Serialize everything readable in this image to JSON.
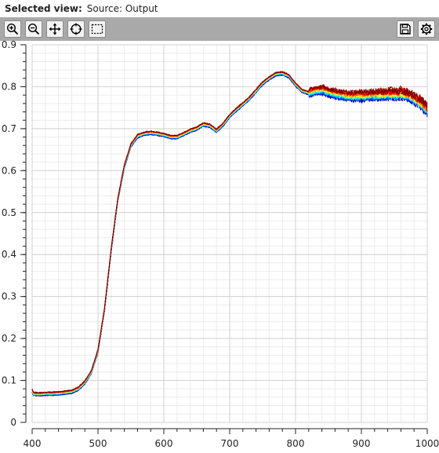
{
  "header": {
    "label": "Selected view:",
    "value": "Source: Output"
  },
  "toolbar": {
    "buttons": [
      {
        "name": "zoom-in-icon"
      },
      {
        "name": "zoom-out-icon"
      },
      {
        "name": "pan-icon"
      },
      {
        "name": "reset-view-icon"
      },
      {
        "name": "box-select-icon"
      },
      {
        "name": "save-icon"
      },
      {
        "name": "settings-icon"
      }
    ]
  },
  "chart_data": {
    "type": "line",
    "title": "",
    "xlabel": "",
    "ylabel": "",
    "xlim": [
      400,
      1000
    ],
    "ylim": [
      0,
      0.9
    ],
    "xticks": [
      400,
      500,
      600,
      700,
      800,
      900,
      1000
    ],
    "yticks": [
      0,
      0.1,
      0.2,
      0.3,
      0.4,
      0.5,
      0.6,
      0.7,
      0.8,
      0.9
    ],
    "grid": true,
    "legend": "none",
    "series_colors": [
      "#00008f",
      "#0000ff",
      "#0080ff",
      "#00ffff",
      "#80ff80",
      "#ffff00",
      "#ff8000",
      "#ff0000",
      "#800000"
    ],
    "mean_curve": {
      "x": [
        400,
        402,
        410,
        420,
        440,
        460,
        470,
        480,
        490,
        500,
        510,
        520,
        530,
        540,
        550,
        560,
        570,
        580,
        590,
        600,
        610,
        620,
        630,
        640,
        650,
        660,
        670,
        680,
        690,
        700,
        710,
        720,
        730,
        740,
        750,
        760,
        770,
        780,
        790,
        800,
        810,
        820,
        830,
        840,
        860,
        880,
        900,
        920,
        940,
        960,
        970,
        980,
        990,
        1000
      ],
      "y": [
        0.075,
        0.068,
        0.067,
        0.068,
        0.069,
        0.073,
        0.08,
        0.095,
        0.12,
        0.17,
        0.27,
        0.41,
        0.53,
        0.61,
        0.66,
        0.682,
        0.688,
        0.69,
        0.688,
        0.685,
        0.68,
        0.68,
        0.687,
        0.695,
        0.7,
        0.71,
        0.707,
        0.695,
        0.71,
        0.73,
        0.745,
        0.758,
        0.772,
        0.79,
        0.808,
        0.82,
        0.83,
        0.832,
        0.825,
        0.805,
        0.79,
        0.785,
        0.79,
        0.792,
        0.783,
        0.778,
        0.778,
        0.78,
        0.782,
        0.783,
        0.78,
        0.772,
        0.762,
        0.745
      ]
    }
  }
}
